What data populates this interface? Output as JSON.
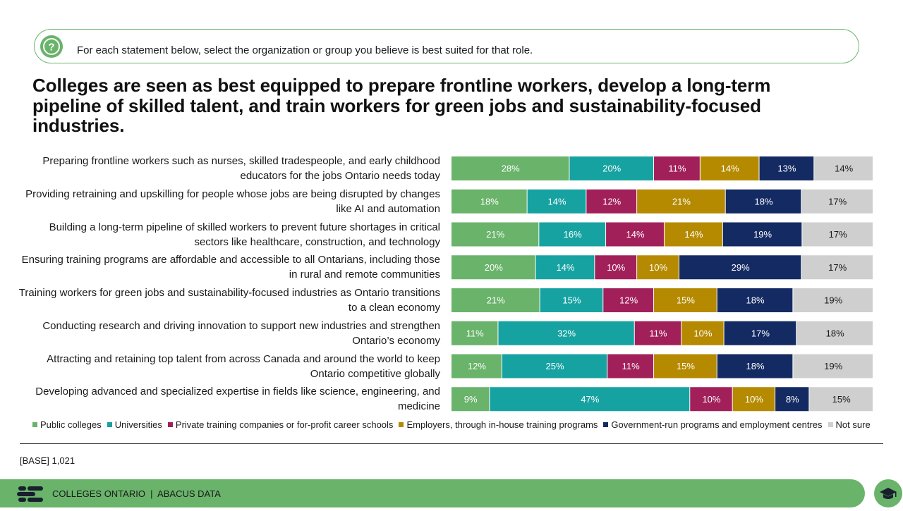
{
  "question": {
    "text": "For each statement below, select the organization or group you believe is best suited for that role."
  },
  "headline": "Colleges are seen as best equipped to prepare frontline workers, develop a long-term pipeline of skilled talent, and train workers for green jobs and sustainability-focused industries.",
  "chart_data": {
    "type": "bar",
    "orientation": "horizontal",
    "stacked": true,
    "percent_stacked": true,
    "categories": [
      "Preparing frontline workers such as nurses, skilled tradespeople, and early childhood educators for the jobs Ontario needs today",
      "Providing retraining and upskilling for people whose jobs are being disrupted by changes like AI and automation",
      "Building a long-term pipeline of skilled workers to prevent future shortages in critical sectors like healthcare, construction, and technology",
      "Ensuring training programs are affordable and accessible to all Ontarians, including those in rural and remote communities",
      "Training workers for green jobs and sustainability-focused industries as Ontario transitions to a clean economy",
      "Conducting research and driving innovation to support new industries and strengthen Ontario’s economy",
      "Attracting and retaining top talent from across Canada and around the world to keep Ontario competitive globally",
      "Developing advanced and specialized expertise in fields like science, engineering, and medicine"
    ],
    "series": [
      {
        "name": "Public colleges",
        "color": "#69b36a",
        "values": [
          28,
          18,
          21,
          20,
          21,
          11,
          12,
          9
        ]
      },
      {
        "name": "Universities",
        "color": "#17a2a2",
        "values": [
          20,
          14,
          16,
          14,
          15,
          32,
          25,
          47
        ]
      },
      {
        "name": "Private training companies or for-profit career schools",
        "color": "#a2205a",
        "values": [
          11,
          12,
          14,
          10,
          12,
          11,
          11,
          10
        ]
      },
      {
        "name": "Employers, through in-house training programs",
        "color": "#b58a00",
        "values": [
          14,
          21,
          14,
          10,
          15,
          10,
          15,
          10
        ]
      },
      {
        "name": "Government-run programs and employment centres",
        "color": "#142a62",
        "values": [
          13,
          18,
          19,
          29,
          18,
          17,
          18,
          8
        ]
      },
      {
        "name": "Not sure",
        "color": "#cfcfcf",
        "values": [
          14,
          17,
          17,
          17,
          19,
          18,
          19,
          15
        ]
      }
    ],
    "value_suffix": "%",
    "legend_position": "bottom",
    "grid": false
  },
  "base_note": "[BASE] 1,021",
  "footer": {
    "text": "COLLEGES ONTARIO  |  ABACUS DATA"
  },
  "icons": {
    "question": "question-circle-icon",
    "logo": "colleges-ontario-logo",
    "cap": "graduation-cap-icon"
  }
}
